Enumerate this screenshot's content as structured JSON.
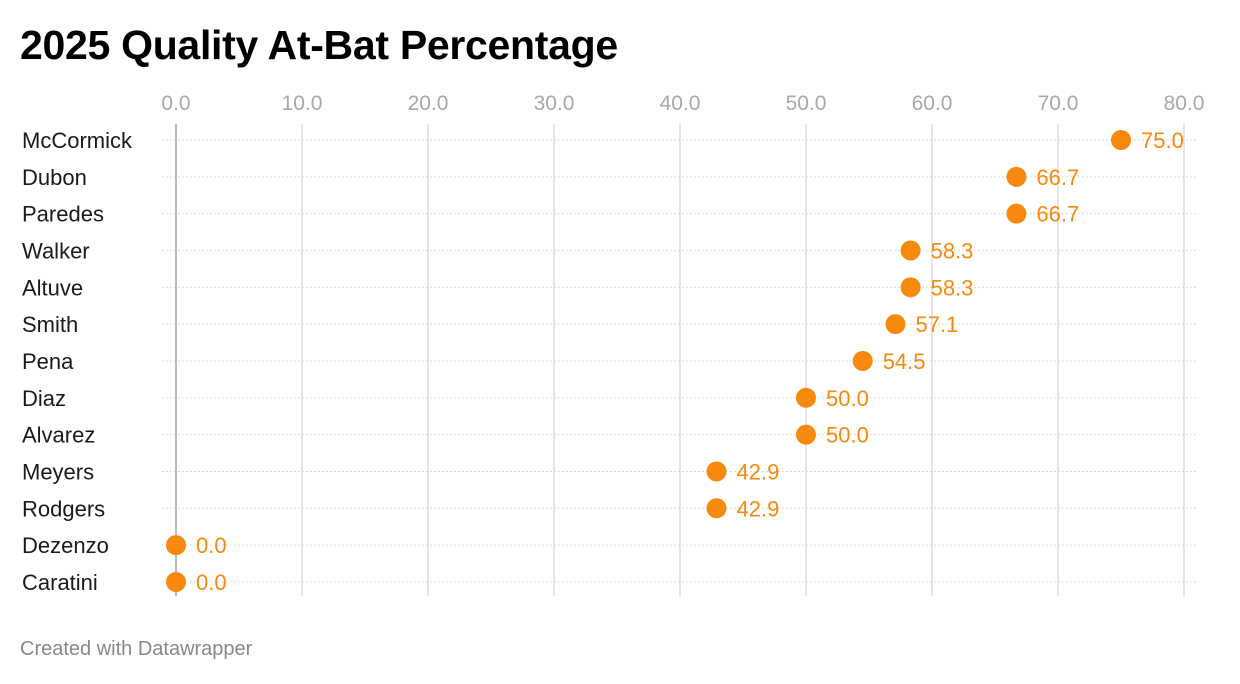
{
  "title": "2025 Quality At-Bat Percentage",
  "footer": "Created with Datawrapper",
  "colors": {
    "dot": "#f7890d",
    "label": "#f7890d",
    "grid": "#dddddd",
    "baseline": "#bbbbbb",
    "tick": "#a8a8a8"
  },
  "chart_data": {
    "type": "scatter",
    "title": "2025 Quality At-Bat Percentage",
    "xlabel": "",
    "ylabel": "",
    "xlim": [
      0,
      80
    ],
    "xticks": [
      0,
      10,
      20,
      30,
      40,
      50,
      60,
      70,
      80
    ],
    "xtick_labels": [
      "0.0",
      "10.0",
      "20.0",
      "30.0",
      "40.0",
      "50.0",
      "60.0",
      "70.0",
      "80.0"
    ],
    "grid": true,
    "categories": [
      "McCormick",
      "Dubon",
      "Paredes",
      "Walker",
      "Altuve",
      "Smith",
      "Pena",
      "Diaz",
      "Alvarez",
      "Meyers",
      "Rodgers",
      "Dezenzo",
      "Caratini"
    ],
    "values": [
      75.0,
      66.7,
      66.7,
      58.3,
      58.3,
      57.1,
      54.5,
      50.0,
      50.0,
      42.9,
      42.9,
      0.0,
      0.0
    ],
    "value_labels": [
      "75.0",
      "66.7",
      "66.7",
      "58.3",
      "58.3",
      "57.1",
      "54.5",
      "50.0",
      "50.0",
      "42.9",
      "42.9",
      "0.0",
      "0.0"
    ]
  }
}
